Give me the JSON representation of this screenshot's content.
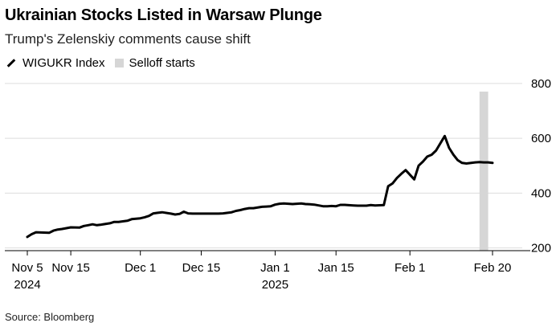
{
  "title": "Ukrainian Stocks Listed in Warsaw Plunge",
  "subtitle": "Trump's Zelenskiy comments cause shift",
  "source": "Source: Bloomberg",
  "colors": {
    "line": "#000000",
    "shade": "#d6d6d6",
    "grid": "#dddddd"
  },
  "chart_data": {
    "type": "line",
    "legend": [
      {
        "label": "WIGUKR Index",
        "kind": "line"
      },
      {
        "label": "Selloff starts",
        "kind": "shade"
      }
    ],
    "series": [
      {
        "name": "WIGUKR Index",
        "x": [
          0,
          1,
          2,
          5,
          6,
          7,
          8,
          9,
          10,
          12,
          13,
          14,
          15,
          16,
          17,
          19,
          20,
          21,
          22,
          23,
          24,
          26,
          27,
          28,
          29,
          30,
          31,
          33,
          34,
          35,
          36,
          37,
          38,
          40,
          41,
          42,
          43,
          44,
          45,
          47,
          48,
          49,
          50,
          51,
          52,
          54,
          55,
          56,
          57,
          58,
          59,
          61,
          62,
          63,
          64,
          65,
          66,
          68,
          69,
          70,
          71,
          72,
          73,
          75,
          76,
          77,
          78,
          79,
          80,
          82,
          83,
          84,
          85,
          86,
          87,
          89,
          90,
          91,
          92,
          93,
          94,
          96,
          97,
          98,
          99,
          100,
          101,
          103,
          104,
          105,
          106,
          107
        ],
        "values": [
          240,
          250,
          257,
          255,
          263,
          267,
          269,
          272,
          275,
          274,
          280,
          283,
          286,
          283,
          285,
          290,
          295,
          295,
          297,
          299,
          305,
          308,
          312,
          317,
          326,
          328,
          330,
          325,
          322,
          324,
          332,
          326,
          325,
          325,
          325,
          325,
          325,
          325,
          326,
          330,
          335,
          338,
          342,
          345,
          345,
          350,
          351,
          352,
          358,
          361,
          362,
          360,
          361,
          362,
          360,
          359,
          358,
          352,
          352,
          353,
          352,
          357,
          357,
          355,
          354,
          354,
          354,
          356,
          355,
          356,
          425,
          435,
          455,
          470,
          484,
          450,
          500,
          515,
          533,
          540,
          555,
          608,
          565,
          540,
          520,
          510,
          508,
          512,
          513,
          512,
          512,
          510
        ]
      }
    ],
    "x_range": [
      0,
      107
    ],
    "ylim": [
      190,
      820
    ],
    "y_ticks": [
      200,
      400,
      600,
      800
    ],
    "x_ticks": [
      {
        "x": 0,
        "label": "Nov 5",
        "sublabel": "2024"
      },
      {
        "x": 10,
        "label": "Nov 15",
        "sublabel": ""
      },
      {
        "x": 26,
        "label": "Dec 1",
        "sublabel": ""
      },
      {
        "x": 40,
        "label": "Dec 15",
        "sublabel": ""
      },
      {
        "x": 57,
        "label": "Jan 1",
        "sublabel": "2025"
      },
      {
        "x": 71,
        "label": "Jan 15",
        "sublabel": ""
      },
      {
        "x": 88,
        "label": "Feb 1",
        "sublabel": ""
      },
      {
        "x": 107,
        "label": "Feb 20",
        "sublabel": ""
      }
    ],
    "shade_range": [
      104,
      106
    ]
  }
}
